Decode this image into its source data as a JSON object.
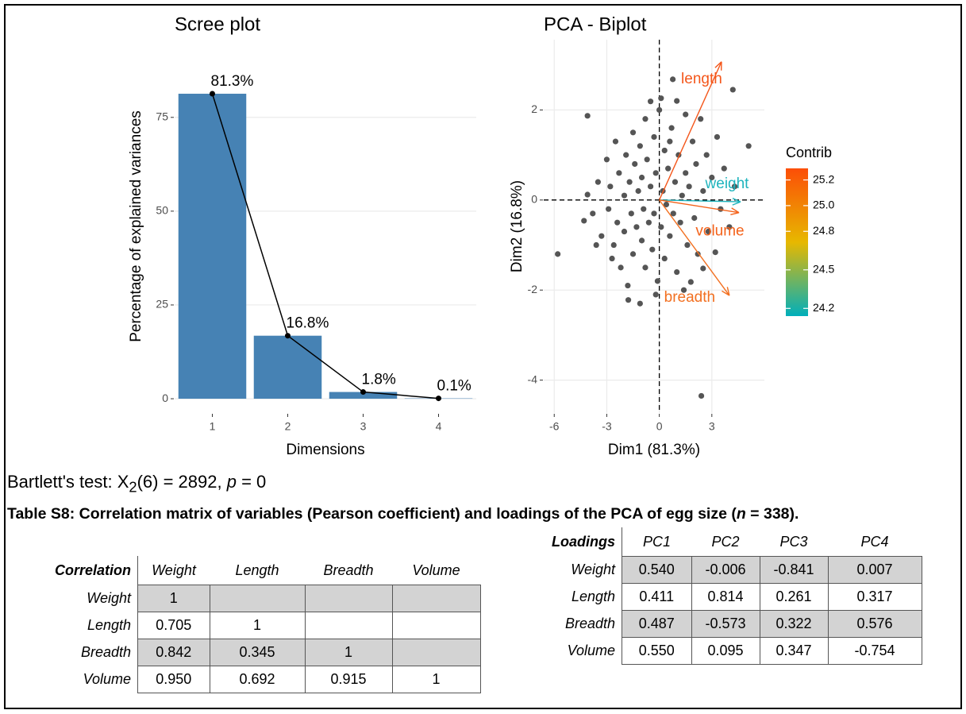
{
  "chart_data": [
    {
      "type": "bar",
      "title": "Scree plot",
      "xlabel": "Dimensions",
      "ylabel": "Percentage of explained variances",
      "categories": [
        "1",
        "2",
        "3",
        "4"
      ],
      "values": [
        81.3,
        16.8,
        1.8,
        0.1
      ],
      "value_labels": [
        "81.3%",
        "16.8%",
        "1.8%",
        "0.1%"
      ],
      "color": "#4682b4",
      "line_color": "#000000",
      "ylim": [
        -3.8,
        95.7
      ],
      "yticks": [
        0,
        25,
        50,
        75
      ],
      "grid": true
    },
    {
      "type": "biplot",
      "title": "PCA - Biplot",
      "xlabel": "Dim1 (81.3%)",
      "ylabel": "Dim2 (16.8%)",
      "xlim": [
        -6.6,
        6.0
      ],
      "ylim": [
        -4.73,
        3.56
      ],
      "xticks": [
        -6,
        -3,
        0,
        3
      ],
      "yticks": [
        -4,
        -2,
        0,
        2
      ],
      "grid": true,
      "point_color": "#555555",
      "x": [
        -5.8,
        -4.1,
        -4.3,
        -4.1,
        -3.8,
        -3.5,
        -3.3,
        -3.0,
        -2.9,
        -2.8,
        -2.6,
        -2.5,
        -2.4,
        -2.3,
        -2.2,
        -2.0,
        -2.0,
        -1.9,
        -1.8,
        -1.77,
        -1.7,
        -1.6,
        -1.5,
        -1.5,
        -1.4,
        -1.3,
        -1.2,
        -1.1,
        -1.1,
        -1.0,
        -1.0,
        -0.9,
        -0.8,
        -0.8,
        -0.7,
        -0.6,
        -0.5,
        -0.5,
        -0.4,
        -0.3,
        -0.3,
        -0.2,
        -0.1,
        0.0,
        0.1,
        0.1,
        0.2,
        0.3,
        0.3,
        0.4,
        0.5,
        0.6,
        0.7,
        0.77,
        0.8,
        0.9,
        1.0,
        1.1,
        1.2,
        1.3,
        1.4,
        1.5,
        1.5,
        1.6,
        1.7,
        1.8,
        1.9,
        2.0,
        2.1,
        2.2,
        2.36,
        2.4,
        2.5,
        2.5,
        2.7,
        2.8,
        3.0,
        3.2,
        3.3,
        3.5,
        3.7,
        4.0,
        4.2,
        4.3,
        5.1,
        -2.7,
        -3.6,
        -0.2,
        0.6,
        1.0
      ],
      "y": [
        -1.2,
        1.87,
        -0.46,
        0.12,
        -0.3,
        0.4,
        -0.8,
        0.9,
        -0.2,
        0.3,
        -1.0,
        1.3,
        -0.5,
        0.6,
        -1.5,
        0.1,
        -0.7,
        1.0,
        -1.9,
        -2.22,
        0.4,
        -0.3,
        1.5,
        -1.2,
        0.8,
        -0.6,
        0.2,
        -2.3,
        1.2,
        -0.9,
        0.5,
        -0.2,
        1.8,
        -1.5,
        0.9,
        -0.5,
        2.19,
        0.3,
        -1.1,
        1.4,
        -0.3,
        0.6,
        -1.8,
        2.0,
        2.26,
        -0.6,
        0.2,
        1.1,
        -1.3,
        -0.1,
        0.7,
        -0.8,
        1.6,
        2.68,
        -0.3,
        0.4,
        -1.6,
        1.0,
        -0.5,
        0.1,
        -2.0,
        1.9,
        0.6,
        -1.0,
        0.3,
        -1.82,
        1.3,
        -0.4,
        0.8,
        -1.2,
        1.8,
        -4.35,
        -1.52,
        0.2,
        1.0,
        -0.7,
        0.5,
        -1.16,
        1.4,
        -0.2,
        0.7,
        -0.6,
        2.45,
        0.3,
        1.2,
        -1.3,
        -1.0,
        -2.1,
        1.3,
        2.2
      ],
      "variables": [
        {
          "name": "length",
          "x": 3.55,
          "y": 3.07,
          "contrib": 25.2,
          "color": "#f4561a"
        },
        {
          "name": "weight",
          "x": 4.64,
          "y": -0.04,
          "contrib": 24.2,
          "color": "#1fb4bd"
        },
        {
          "name": "volume",
          "x": 4.55,
          "y": -0.28,
          "contrib": 25.1,
          "color": "#f4621a"
        },
        {
          "name": "breadth",
          "x": 4.0,
          "y": -2.12,
          "contrib": 25.0,
          "color": "#f27021"
        }
      ],
      "legend": {
        "title": "Contrib",
        "lim": [
          24.14,
          25.29
        ],
        "ticks": [
          24.2,
          24.5,
          24.8,
          {
            "value": 25,
            "label": "25.0"
          },
          25.2
        ],
        "colors": [
          "#00AFBB",
          "#E7B800",
          "#FC4E07"
        ]
      }
    }
  ],
  "bartlett": [
    "Bartlett's test: X",
    "2",
    "(6) = 2892, ",
    "p",
    " = 0"
  ],
  "caption": [
    "Table S8: Correlation matrix of variables (Pearson coefficient) and loadings of the PCA of egg size (",
    "n",
    " = 338)."
  ],
  "correlation_table": {
    "header": [
      "Correlation",
      "Weight",
      "Length",
      "Breadth",
      "Volume"
    ],
    "rows": [
      {
        "label": "Weight",
        "cells": [
          "1",
          null,
          null,
          null
        ]
      },
      {
        "label": "Length",
        "cells": [
          "0.705",
          "1",
          null,
          null
        ]
      },
      {
        "label": "Breadth",
        "cells": [
          "0.842",
          "0.345",
          "1",
          null
        ]
      },
      {
        "label": "Volume",
        "cells": [
          "0.950",
          "0.692",
          "0.915",
          "1"
        ]
      }
    ]
  },
  "loadings_table": {
    "header": [
      "Loadings",
      "PC1",
      "PC2",
      "PC3",
      "PC4"
    ],
    "rows": [
      {
        "label": "Weight",
        "cells": [
          "0.540",
          "-0.006",
          "-0.841",
          "0.007"
        ]
      },
      {
        "label": "Length",
        "cells": [
          "0.411",
          "0.814",
          "0.261",
          "0.317"
        ]
      },
      {
        "label": "Breadth",
        "cells": [
          "0.487",
          "-0.573",
          "0.322",
          "0.576"
        ]
      },
      {
        "label": "Volume",
        "cells": [
          "0.550",
          "0.095",
          "0.347",
          "-0.754"
        ]
      }
    ]
  }
}
